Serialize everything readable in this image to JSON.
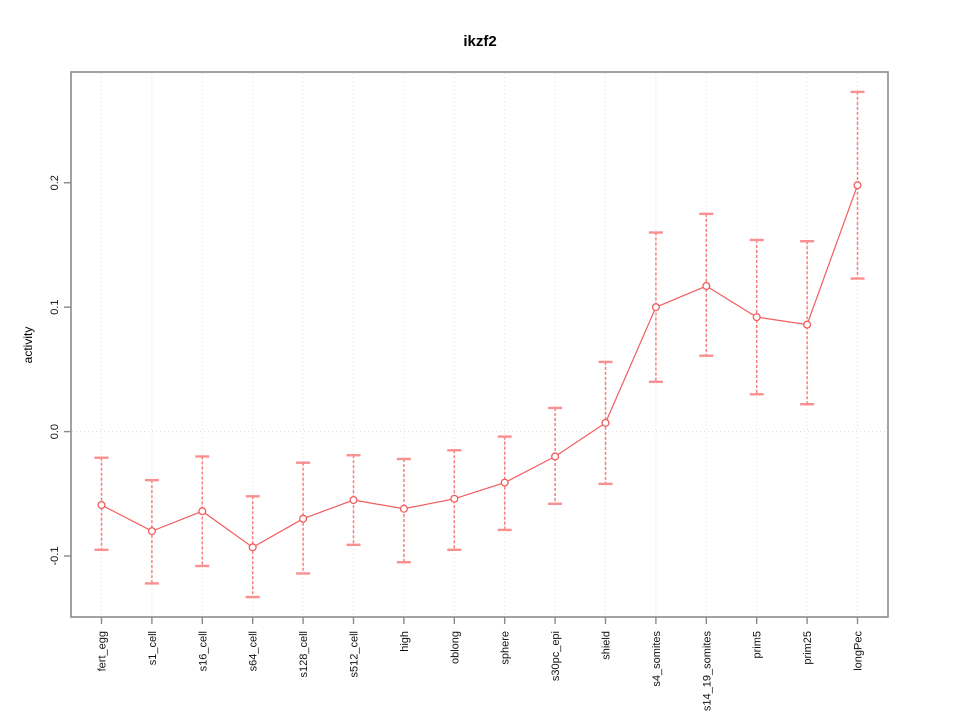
{
  "chart_data": {
    "type": "line",
    "title": "ikzf2",
    "xlabel": "",
    "ylabel": "activity",
    "legend": "none",
    "grid": {
      "vertical_dotted_per_category": true,
      "horizontal_dotted_at_zero": true
    },
    "categories": [
      "fert_egg",
      "s1_cell",
      "s16_cell",
      "s64_cell",
      "s128_cell",
      "s512_cell",
      "high",
      "oblong",
      "sphere",
      "s30pc_epi",
      "shield",
      "s4_somites",
      "s14_19_somites",
      "prim5",
      "prim25",
      "longPec"
    ],
    "series": [
      {
        "name": "activity",
        "values": [
          -0.059,
          -0.08,
          -0.064,
          -0.093,
          -0.07,
          -0.055,
          -0.062,
          -0.054,
          -0.041,
          -0.02,
          0.007,
          0.1,
          0.117,
          0.092,
          0.086,
          0.198
        ],
        "error_upper": [
          -0.021,
          -0.039,
          -0.02,
          -0.052,
          -0.025,
          -0.019,
          -0.022,
          -0.015,
          -0.004,
          0.019,
          0.056,
          0.16,
          0.175,
          0.154,
          0.153,
          0.273
        ],
        "error_lower": [
          -0.095,
          -0.122,
          -0.108,
          -0.133,
          -0.114,
          -0.091,
          -0.105,
          -0.095,
          -0.079,
          -0.058,
          -0.042,
          0.04,
          0.061,
          0.03,
          0.022,
          0.123
        ]
      }
    ],
    "yticks": [
      -0.1,
      0.0,
      0.1,
      0.2
    ],
    "ytick_labels": [
      "-0.1",
      "0.0",
      "0.1",
      "0.2"
    ],
    "ylim": [
      -0.149,
      0.289
    ],
    "colors": {
      "line": "#f25c5c",
      "point_stroke": "#f25c5c",
      "point_fill": "#ffffff",
      "error_bar": "#f87e7e",
      "error_cap": "#f98f8f",
      "grid": "#dcdcdc",
      "zero_line": "#dcdcdc",
      "axis_box": "#8a8a8a",
      "tick": "#8a8a8a",
      "text": "#111111"
    }
  }
}
